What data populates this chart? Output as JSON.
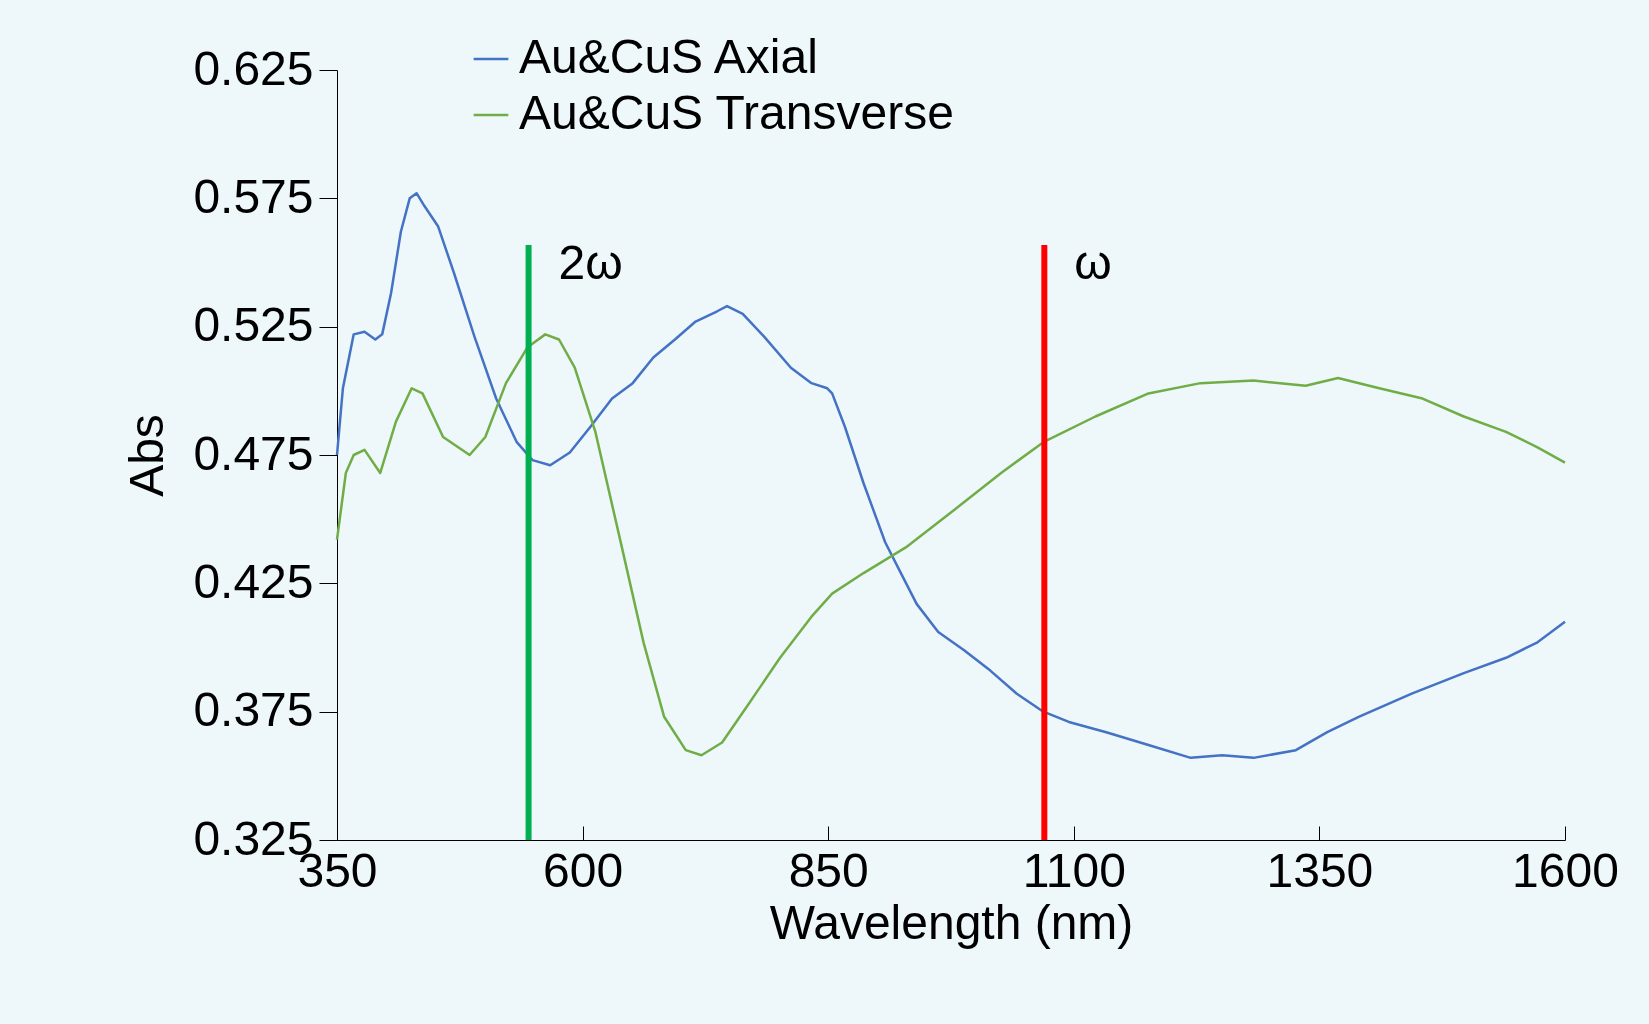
{
  "chart_data": {
    "type": "line",
    "xlabel": "Wavelength (nm)",
    "ylabel": "Abs",
    "xlim": [
      350,
      1600
    ],
    "xticks": [
      350,
      600,
      850,
      1100,
      1350,
      1600
    ],
    "ylim": [
      0.325,
      0.625
    ],
    "yticks": [
      0.325,
      0.375,
      0.425,
      0.475,
      0.525,
      0.575,
      0.625
    ],
    "grid": false,
    "legend": "top",
    "marker": "none",
    "series": [
      {
        "name": "Au&CuS Axial",
        "color": "#4472c4",
        "x": [
          350,
          356,
          367,
          378,
          389,
          396,
          405,
          415,
          424,
          431,
          439,
          453,
          469,
          490,
          512,
          533,
          549,
          567,
          587,
          608,
          630,
          651,
          672,
          694,
          715,
          737,
          747,
          763,
          785,
          812,
          833,
          849,
          854,
          867,
          886,
          908,
          924,
          940,
          962,
          988,
          1015,
          1042,
          1069,
          1095,
          1133,
          1176,
          1219,
          1251,
          1283,
          1326,
          1358,
          1390,
          1444,
          1497,
          1540,
          1572,
          1600
        ],
        "values": [
          0.475,
          0.501,
          0.522,
          0.523,
          0.52,
          0.522,
          0.538,
          0.562,
          0.575,
          0.577,
          0.572,
          0.564,
          0.546,
          0.521,
          0.497,
          0.48,
          0.473,
          0.471,
          0.476,
          0.486,
          0.497,
          0.503,
          0.513,
          0.52,
          0.527,
          0.531,
          0.533,
          0.53,
          0.521,
          0.509,
          0.503,
          0.501,
          0.499,
          0.486,
          0.464,
          0.441,
          0.429,
          0.417,
          0.406,
          0.399,
          0.391,
          0.382,
          0.375,
          0.371,
          0.367,
          0.362,
          0.357,
          0.358,
          0.357,
          0.36,
          0.367,
          0.373,
          0.382,
          0.39,
          0.396,
          0.402,
          0.41
        ]
      },
      {
        "name": "Au&CuS Transverse",
        "color": "#70ad47",
        "x": [
          350,
          359,
          367,
          378,
          394,
          410,
          426,
          437,
          458,
          485,
          501,
          522,
          544,
          562,
          576,
          592,
          613,
          640,
          662,
          683,
          705,
          721,
          742,
          769,
          801,
          833,
          854,
          886,
          929,
          983,
          1026,
          1069,
          1122,
          1176,
          1229,
          1283,
          1336,
          1369,
          1411,
          1455,
          1497,
          1540,
          1572,
          1600
        ],
        "values": [
          0.442,
          0.468,
          0.475,
          0.477,
          0.468,
          0.488,
          0.501,
          0.499,
          0.482,
          0.475,
          0.482,
          0.503,
          0.517,
          0.522,
          0.52,
          0.509,
          0.484,
          0.439,
          0.402,
          0.373,
          0.36,
          0.358,
          0.363,
          0.378,
          0.396,
          0.412,
          0.421,
          0.429,
          0.439,
          0.455,
          0.468,
          0.48,
          0.49,
          0.499,
          0.503,
          0.504,
          0.502,
          0.505,
          0.501,
          0.497,
          0.49,
          0.484,
          0.478,
          0.472
        ]
      }
    ],
    "ref_lines": [
      {
        "axis": "x",
        "value": 545,
        "label": "2ω",
        "color": "#00b050"
      },
      {
        "axis": "x",
        "value": 1070,
        "label": "ω",
        "color": "#ff0000"
      }
    ]
  }
}
